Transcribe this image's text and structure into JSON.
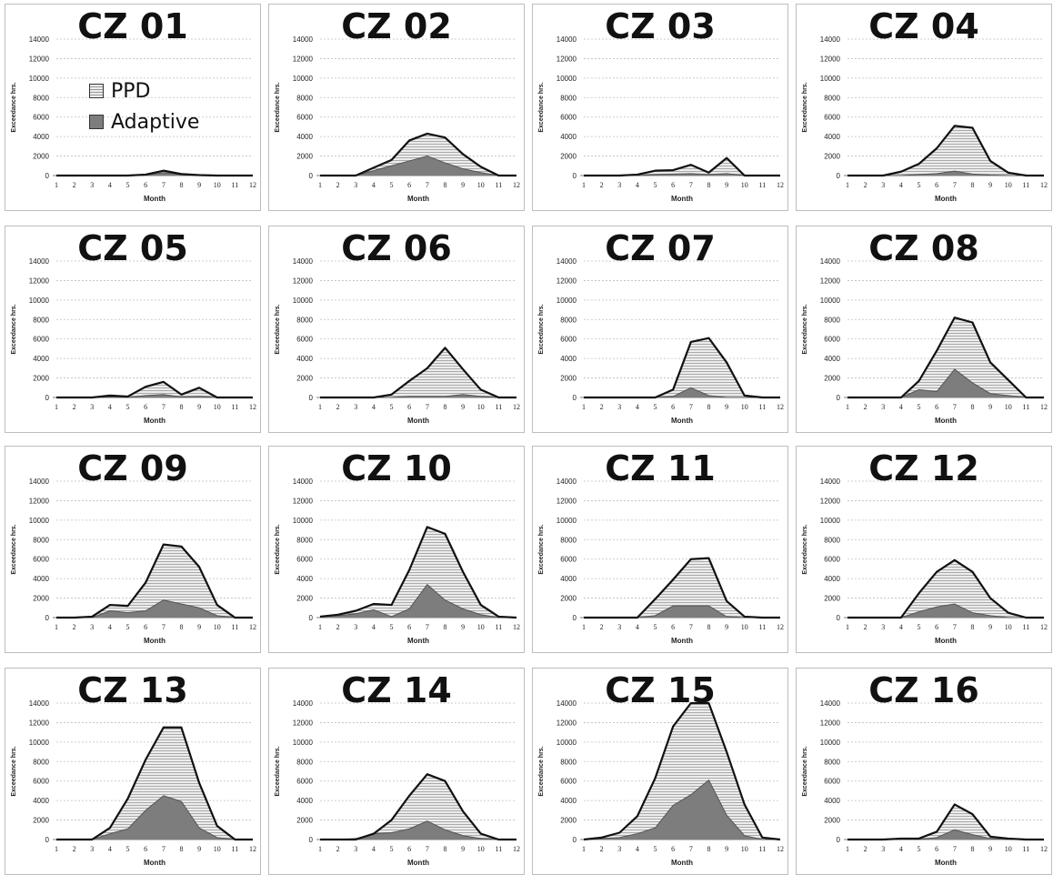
{
  "figure": {
    "colors": {
      "ppd_fill": "#ececec",
      "ppd_hatch": "#9a9a9a",
      "adaptive_fill": "#7d7d7d",
      "outline": "#111111",
      "grid": "#bfbfbf",
      "border": "#bdbdbd"
    }
  },
  "chart_data": [
    {
      "type": "area",
      "title": "CZ 01",
      "xlabel": "Month",
      "ylabel": "Exceedance hrs.",
      "x": [
        1,
        2,
        3,
        4,
        5,
        6,
        7,
        8,
        9,
        10,
        11,
        12
      ],
      "ylim": [
        0,
        14000
      ],
      "yticks": [
        0,
        2000,
        4000,
        6000,
        8000,
        10000,
        12000,
        14000
      ],
      "grid": "horizontal dashed",
      "legend": {
        "placement": "left",
        "entries": [
          "PPD",
          "Adaptive"
        ]
      },
      "series": [
        {
          "name": "PPD",
          "values": [
            0,
            0,
            0,
            0,
            0,
            100,
            500,
            150,
            50,
            0,
            0,
            0
          ]
        },
        {
          "name": "Adaptive",
          "values": [
            0,
            0,
            0,
            0,
            0,
            50,
            300,
            100,
            0,
            0,
            0,
            0
          ]
        }
      ]
    },
    {
      "type": "area",
      "title": "CZ 02",
      "xlabel": "Month",
      "ylabel": "Exceedance hrs.",
      "x": [
        1,
        2,
        3,
        4,
        5,
        6,
        7,
        8,
        9,
        10,
        11,
        12
      ],
      "ylim": [
        0,
        14000
      ],
      "yticks": [
        0,
        2000,
        4000,
        6000,
        8000,
        10000,
        12000,
        14000
      ],
      "series": [
        {
          "name": "PPD",
          "values": [
            0,
            0,
            0,
            800,
            1600,
            3600,
            4300,
            3900,
            2200,
            900,
            0,
            0
          ]
        },
        {
          "name": "Adaptive",
          "values": [
            0,
            0,
            0,
            500,
            1000,
            1500,
            2000,
            1300,
            700,
            300,
            0,
            0
          ]
        }
      ]
    },
    {
      "type": "area",
      "title": "CZ 03",
      "xlabel": "Month",
      "ylabel": "Exceedance hrs.",
      "x": [
        1,
        2,
        3,
        4,
        5,
        6,
        7,
        8,
        9,
        10,
        11,
        12
      ],
      "ylim": [
        0,
        14000
      ],
      "yticks": [
        0,
        2000,
        4000,
        6000,
        8000,
        10000,
        12000,
        14000
      ],
      "series": [
        {
          "name": "PPD",
          "values": [
            0,
            0,
            0,
            100,
            500,
            550,
            1100,
            300,
            1800,
            0,
            0,
            0
          ]
        },
        {
          "name": "Adaptive",
          "values": [
            0,
            0,
            0,
            0,
            100,
            150,
            200,
            100,
            200,
            0,
            0,
            0
          ]
        }
      ]
    },
    {
      "type": "area",
      "title": "CZ 04",
      "xlabel": "Month",
      "ylabel": "Exceedance hrs.",
      "x": [
        1,
        2,
        3,
        4,
        5,
        6,
        7,
        8,
        9,
        10,
        11,
        12
      ],
      "ylim": [
        0,
        14000
      ],
      "yticks": [
        0,
        2000,
        4000,
        6000,
        8000,
        10000,
        12000,
        14000
      ],
      "series": [
        {
          "name": "PPD",
          "values": [
            0,
            0,
            0,
            400,
            1200,
            2800,
            5100,
            4900,
            1500,
            300,
            0,
            0
          ]
        },
        {
          "name": "Adaptive",
          "values": [
            0,
            0,
            0,
            0,
            100,
            200,
            450,
            150,
            50,
            0,
            0,
            0
          ]
        }
      ]
    },
    {
      "type": "area",
      "title": "CZ 05",
      "xlabel": "Month",
      "ylabel": "Exceedance hrs.",
      "x": [
        1,
        2,
        3,
        4,
        5,
        6,
        7,
        8,
        9,
        10,
        11,
        12
      ],
      "ylim": [
        0,
        14000
      ],
      "yticks": [
        0,
        2000,
        4000,
        6000,
        8000,
        10000,
        12000,
        14000
      ],
      "series": [
        {
          "name": "PPD",
          "values": [
            0,
            0,
            0,
            200,
            100,
            1100,
            1600,
            300,
            1000,
            0,
            0,
            0
          ]
        },
        {
          "name": "Adaptive",
          "values": [
            0,
            0,
            0,
            50,
            0,
            200,
            300,
            50,
            100,
            0,
            0,
            0
          ]
        }
      ]
    },
    {
      "type": "area",
      "title": "CZ 06",
      "xlabel": "Month",
      "ylabel": "Exceedance hrs.",
      "x": [
        1,
        2,
        3,
        4,
        5,
        6,
        7,
        8,
        9,
        10,
        11,
        12
      ],
      "ylim": [
        0,
        14000
      ],
      "yticks": [
        0,
        2000,
        4000,
        6000,
        8000,
        10000,
        12000,
        14000
      ],
      "series": [
        {
          "name": "PPD",
          "values": [
            0,
            0,
            0,
            0,
            300,
            1700,
            3000,
            5100,
            2900,
            800,
            0,
            0
          ]
        },
        {
          "name": "Adaptive",
          "values": [
            0,
            0,
            0,
            0,
            0,
            100,
            100,
            100,
            300,
            100,
            0,
            0
          ]
        }
      ]
    },
    {
      "type": "area",
      "title": "CZ 07",
      "xlabel": "Month",
      "ylabel": "Exceedance hrs.",
      "x": [
        1,
        2,
        3,
        4,
        5,
        6,
        7,
        8,
        9,
        10,
        11,
        12
      ],
      "ylim": [
        0,
        14000
      ],
      "yticks": [
        0,
        2000,
        4000,
        6000,
        8000,
        10000,
        12000,
        14000
      ],
      "series": [
        {
          "name": "PPD",
          "values": [
            0,
            0,
            0,
            0,
            0,
            800,
            5700,
            6100,
            3600,
            200,
            0,
            0
          ]
        },
        {
          "name": "Adaptive",
          "values": [
            0,
            0,
            0,
            0,
            0,
            100,
            1000,
            200,
            0,
            0,
            0,
            0
          ]
        }
      ]
    },
    {
      "type": "area",
      "title": "CZ 08",
      "xlabel": "Month",
      "ylabel": "Exceedance hrs.",
      "x": [
        1,
        2,
        3,
        4,
        5,
        6,
        7,
        8,
        9,
        10,
        11,
        12
      ],
      "ylim": [
        0,
        14000
      ],
      "yticks": [
        0,
        2000,
        4000,
        6000,
        8000,
        10000,
        12000,
        14000
      ],
      "series": [
        {
          "name": "PPD",
          "values": [
            0,
            0,
            0,
            0,
            1700,
            4800,
            8200,
            7700,
            3600,
            1800,
            0,
            0
          ]
        },
        {
          "name": "Adaptive",
          "values": [
            0,
            0,
            0,
            0,
            800,
            600,
            2900,
            1500,
            400,
            200,
            0,
            0
          ]
        }
      ]
    },
    {
      "type": "area",
      "title": "CZ 09",
      "xlabel": "Month",
      "ylabel": "Exceedance hrs.",
      "x": [
        1,
        2,
        3,
        4,
        5,
        6,
        7,
        8,
        9,
        10,
        11,
        12
      ],
      "ylim": [
        0,
        14000
      ],
      "yticks": [
        0,
        2000,
        4000,
        6000,
        8000,
        10000,
        12000,
        14000
      ],
      "series": [
        {
          "name": "PPD",
          "values": [
            0,
            0,
            100,
            1300,
            1200,
            3600,
            7500,
            7300,
            5200,
            1300,
            0,
            0
          ]
        },
        {
          "name": "Adaptive",
          "values": [
            0,
            0,
            0,
            700,
            500,
            700,
            1800,
            1400,
            1000,
            200,
            0,
            0
          ]
        }
      ]
    },
    {
      "type": "area",
      "title": "CZ 10",
      "xlabel": "Month",
      "ylabel": "Exceedance hrs.",
      "x": [
        1,
        2,
        3,
        4,
        5,
        6,
        7,
        8,
        9,
        10,
        11,
        12
      ],
      "ylim": [
        0,
        14000
      ],
      "yticks": [
        0,
        2000,
        4000,
        6000,
        8000,
        10000,
        12000,
        14000
      ],
      "series": [
        {
          "name": "PPD",
          "values": [
            100,
            300,
            700,
            1400,
            1300,
            4900,
            9300,
            8600,
            4700,
            1300,
            100,
            0
          ]
        },
        {
          "name": "Adaptive",
          "values": [
            100,
            200,
            400,
            800,
            100,
            900,
            3400,
            1800,
            900,
            300,
            0,
            0
          ]
        }
      ]
    },
    {
      "type": "area",
      "title": "CZ 11",
      "xlabel": "Month",
      "ylabel": "Exceedance hrs.",
      "x": [
        1,
        2,
        3,
        4,
        5,
        6,
        7,
        8,
        9,
        10,
        11,
        12
      ],
      "ylim": [
        0,
        14000
      ],
      "yticks": [
        0,
        2000,
        4000,
        6000,
        8000,
        10000,
        12000,
        14000
      ],
      "series": [
        {
          "name": "PPD",
          "values": [
            0,
            0,
            0,
            0,
            1900,
            3900,
            6000,
            6100,
            1700,
            100,
            0,
            0
          ]
        },
        {
          "name": "Adaptive",
          "values": [
            0,
            0,
            0,
            0,
            200,
            1200,
            1200,
            1200,
            100,
            0,
            0,
            0
          ]
        }
      ]
    },
    {
      "type": "area",
      "title": "CZ 12",
      "xlabel": "Month",
      "ylabel": "Exceedance hrs.",
      "x": [
        1,
        2,
        3,
        4,
        5,
        6,
        7,
        8,
        9,
        10,
        11,
        12
      ],
      "ylim": [
        0,
        14000
      ],
      "yticks": [
        0,
        2000,
        4000,
        6000,
        8000,
        10000,
        12000,
        14000
      ],
      "series": [
        {
          "name": "PPD",
          "values": [
            0,
            0,
            0,
            0,
            2500,
            4700,
            5900,
            4700,
            2000,
            500,
            0,
            0
          ]
        },
        {
          "name": "Adaptive",
          "values": [
            0,
            0,
            0,
            0,
            600,
            1100,
            1400,
            500,
            200,
            0,
            0,
            0
          ]
        }
      ]
    },
    {
      "type": "area",
      "title": "CZ 13",
      "xlabel": "Month",
      "ylabel": "Exceedance hrs.",
      "x": [
        1,
        2,
        3,
        4,
        5,
        6,
        7,
        8,
        9,
        10,
        11,
        12
      ],
      "ylim": [
        0,
        14000
      ],
      "yticks": [
        0,
        2000,
        4000,
        6000,
        8000,
        10000,
        12000,
        14000
      ],
      "series": [
        {
          "name": "PPD",
          "values": [
            0,
            0,
            0,
            1200,
            4200,
            8200,
            11500,
            11500,
            5800,
            1400,
            0,
            0
          ]
        },
        {
          "name": "Adaptive",
          "values": [
            0,
            0,
            0,
            600,
            1100,
            3000,
            4500,
            3900,
            1200,
            200,
            0,
            0
          ]
        }
      ]
    },
    {
      "type": "area",
      "title": "CZ 14",
      "xlabel": "Month",
      "ylabel": "Exceedance hrs.",
      "x": [
        1,
        2,
        3,
        4,
        5,
        6,
        7,
        8,
        9,
        10,
        11,
        12
      ],
      "ylim": [
        0,
        14000
      ],
      "yticks": [
        0,
        2000,
        4000,
        6000,
        8000,
        10000,
        12000,
        14000
      ],
      "series": [
        {
          "name": "PPD",
          "values": [
            0,
            0,
            0,
            600,
            2000,
            4500,
            6700,
            6000,
            2900,
            600,
            0,
            0
          ]
        },
        {
          "name": "Adaptive",
          "values": [
            0,
            0,
            100,
            600,
            700,
            1100,
            1900,
            1000,
            400,
            100,
            0,
            0
          ]
        }
      ]
    },
    {
      "type": "area",
      "title": "CZ 15",
      "xlabel": "Month",
      "ylabel": "Exceedance hrs.",
      "x": [
        1,
        2,
        3,
        4,
        5,
        6,
        7,
        8,
        9,
        10,
        11,
        12
      ],
      "ylim": [
        0,
        14000
      ],
      "yticks": [
        0,
        2000,
        4000,
        6000,
        8000,
        10000,
        12000,
        14000
      ],
      "series": [
        {
          "name": "PPD",
          "values": [
            0,
            200,
            700,
            2400,
            6300,
            11600,
            14000,
            14000,
            9000,
            3600,
            200,
            0
          ]
        },
        {
          "name": "Adaptive",
          "values": [
            0,
            100,
            200,
            600,
            1200,
            3500,
            4600,
            6100,
            2500,
            400,
            0,
            0
          ]
        }
      ]
    },
    {
      "type": "area",
      "title": "CZ 16",
      "xlabel": "Month",
      "ylabel": "Exceedance hrs.",
      "x": [
        1,
        2,
        3,
        4,
        5,
        6,
        7,
        8,
        9,
        10,
        11,
        12
      ],
      "ylim": [
        0,
        14000
      ],
      "yticks": [
        0,
        2000,
        4000,
        6000,
        8000,
        10000,
        12000,
        14000
      ],
      "series": [
        {
          "name": "PPD",
          "values": [
            0,
            0,
            0,
            100,
            100,
            800,
            3600,
            2600,
            300,
            100,
            0,
            0
          ]
        },
        {
          "name": "Adaptive",
          "values": [
            0,
            0,
            0,
            0,
            0,
            200,
            1000,
            500,
            100,
            0,
            0,
            0
          ]
        }
      ]
    }
  ]
}
